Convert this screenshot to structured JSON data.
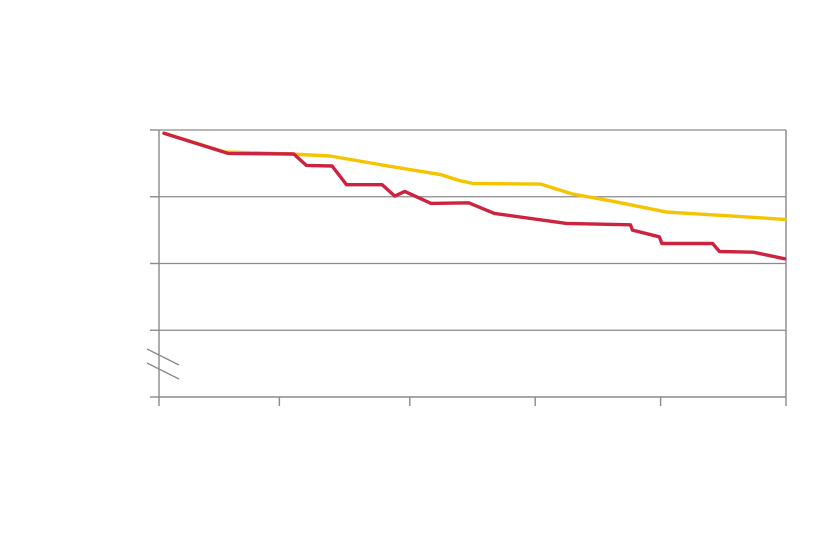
{
  "chart_data": {
    "type": "line",
    "title": "",
    "xlabel": "",
    "ylabel": "",
    "xlim": [
      0,
      100
    ],
    "ylim": [
      0,
      4
    ],
    "y_axis_break": true,
    "grid": "horizontal",
    "x_tick_values": [
      0,
      19.2,
      40,
      60,
      80,
      100
    ],
    "y_tick_values": [
      0,
      1,
      2,
      3,
      4
    ],
    "x_tick_labels": [
      "",
      "",
      "",
      "",
      "",
      ""
    ],
    "y_tick_labels": [
      "",
      "",
      "",
      "",
      ""
    ],
    "colors": {
      "series_1": "#f5c400",
      "series_2": "#cc2440",
      "axis": "#8a8a8a"
    },
    "series": [
      {
        "x": [
          0.8,
          10.5,
          21,
          27.3,
          36,
          45,
          48,
          50,
          60.9,
          66,
          72,
          81,
          95,
          99.8
        ],
        "values": [
          3.95,
          3.67,
          3.64,
          3.61,
          3.47,
          3.33,
          3.24,
          3.2,
          3.19,
          3.04,
          2.94,
          2.77,
          2.69,
          2.66
        ]
      },
      {
        "x": [
          0.8,
          11,
          21.5,
          23.5,
          27.6,
          29.9,
          35.6,
          37.6,
          39.2,
          43.4,
          49.4,
          53.5,
          65,
          75.2,
          75.5,
          79.8,
          80.2,
          88.3,
          89.4,
          94.8,
          99.8
        ],
        "values": [
          3.95,
          3.65,
          3.64,
          3.47,
          3.46,
          3.18,
          3.18,
          3.01,
          3.08,
          2.9,
          2.91,
          2.75,
          2.6,
          2.58,
          2.5,
          2.4,
          2.3,
          2.3,
          2.18,
          2.17,
          2.07
        ]
      }
    ]
  }
}
